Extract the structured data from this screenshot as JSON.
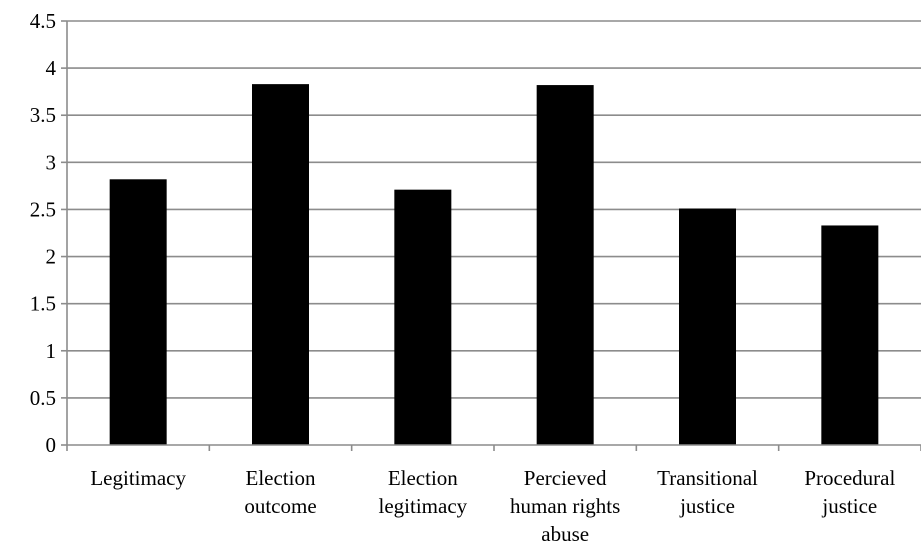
{
  "chart_data": {
    "type": "bar",
    "title": "",
    "xlabel": "",
    "ylabel": "",
    "categories": [
      [
        "Legitimacy"
      ],
      [
        "Election",
        "outcome"
      ],
      [
        "Election",
        "legitimacy"
      ],
      [
        "Percieved",
        "human rights",
        "abuse"
      ],
      [
        "Transitional",
        "justice"
      ],
      [
        "Procedural",
        "justice"
      ]
    ],
    "values": [
      2.82,
      3.83,
      2.71,
      3.82,
      2.51,
      2.33
    ],
    "ylim": [
      0,
      4.5
    ],
    "yticks": [
      "0",
      "0.5",
      "1",
      "1.5",
      "2",
      "2.5",
      "3",
      "3.5",
      "4",
      "4.5"
    ],
    "grid": "horizontal",
    "bar_color": "#000000",
    "grid_color": "#8c8c8c"
  }
}
